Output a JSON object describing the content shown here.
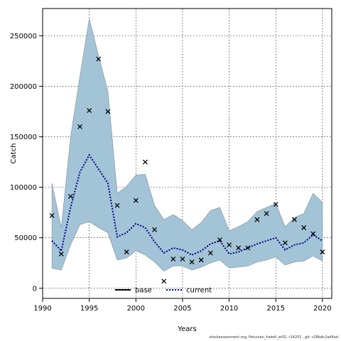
{
  "chart_data": {
    "type": "line",
    "xlabel": "Years",
    "ylabel": "Catch",
    "xlim": [
      1990,
      2021
    ],
    "ylim": [
      -10000,
      277000
    ],
    "xticks": [
      1990,
      1995,
      2000,
      2005,
      2010,
      2015,
      2020
    ],
    "yticks": [
      0,
      50000,
      100000,
      150000,
      200000,
      250000
    ],
    "grid": true,
    "legend_position": "bottom-center",
    "legend": [
      {
        "name": "base",
        "style": "solid",
        "color": "#000000"
      },
      {
        "name": "current",
        "style": "dotted",
        "color": "#00008b"
      }
    ],
    "colors": {
      "band": "#a3c4d6",
      "band_edge": "#7f8c96",
      "current": "#00008b",
      "base": "#000000"
    },
    "x": [
      1991,
      1992,
      1993,
      1994,
      1995,
      1996,
      1997,
      1998,
      1999,
      2000,
      2001,
      2002,
      2003,
      2004,
      2005,
      2006,
      2007,
      2008,
      2009,
      2010,
      2011,
      2012,
      2013,
      2014,
      2015,
      2016,
      2017,
      2018,
      2019,
      2020
    ],
    "series": [
      {
        "name": "current",
        "values": [
          47000,
          37000,
          80000,
          115000,
          132000,
          118000,
          104000,
          51000,
          55000,
          64000,
          60000,
          46000,
          35000,
          40000,
          38000,
          33000,
          37000,
          44000,
          47000,
          34000,
          36000,
          40000,
          44000,
          47000,
          50000,
          38000,
          43000,
          45000,
          53000,
          47000
        ]
      }
    ],
    "band": {
      "lower": [
        20000,
        18000,
        43000,
        63000,
        66000,
        60000,
        55000,
        28000,
        30000,
        37000,
        33000,
        26000,
        17000,
        22000,
        22000,
        18000,
        21000,
        25000,
        28000,
        20000,
        21000,
        22000,
        26000,
        28000,
        31000,
        23000,
        26000,
        27000,
        32000,
        27000
      ],
      "upper": [
        104000,
        60000,
        150000,
        210000,
        267000,
        230000,
        195000,
        94000,
        101000,
        112000,
        113000,
        82000,
        68000,
        73000,
        67000,
        58000,
        65000,
        77000,
        80000,
        57000,
        61000,
        66000,
        76000,
        80000,
        84000,
        61000,
        70000,
        74000,
        94000,
        85000
      ]
    },
    "observations": {
      "x": [
        1991,
        1992,
        1993,
        1994,
        1995,
        1996,
        1997,
        1998,
        1999,
        2000,
        2001,
        2002,
        2003,
        2004,
        2005,
        2006,
        2007,
        2008,
        2009,
        2010,
        2011,
        2012,
        2013,
        2014,
        2015,
        2016,
        2017,
        2018,
        2019,
        2020
      ],
      "y": [
        72000,
        34000,
        91000,
        160000,
        176000,
        227000,
        175000,
        82000,
        36000,
        87000,
        125000,
        58000,
        7000,
        29000,
        29000,
        26000,
        28000,
        35000,
        48000,
        43000,
        40000,
        40000,
        68000,
        74000,
        83000,
        45000,
        68000,
        60000,
        54000,
        36000
      ]
    }
  },
  "footer": "stockassessment.org,  Peruvian_hakeII_ar02,  r14201 ,  git: c28bdc2a44ad"
}
